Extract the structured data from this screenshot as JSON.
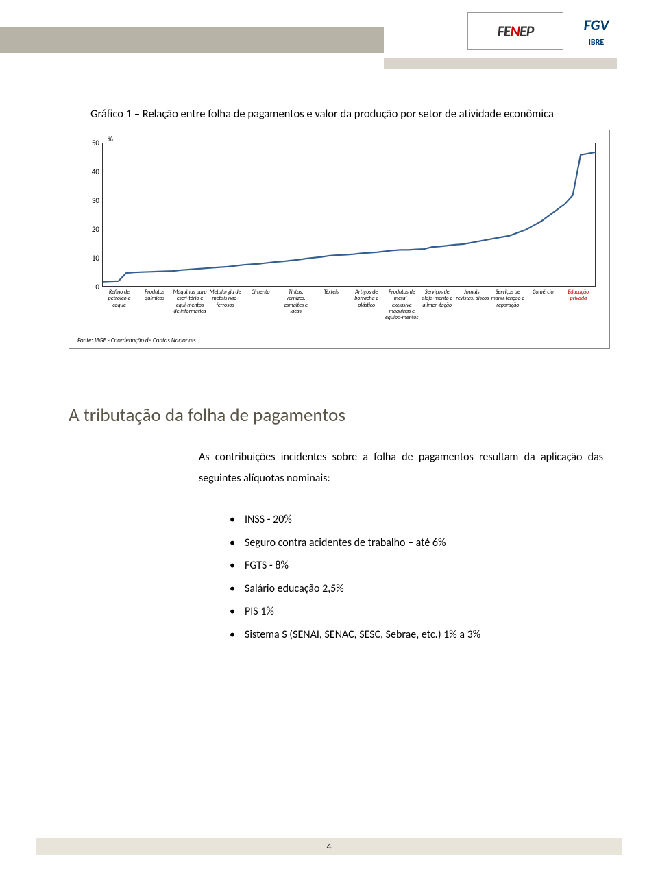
{
  "header": {
    "logo1_text_a": "FE",
    "logo1_text_b": "N",
    "logo1_text_c": "EP",
    "logo2_top": "FGV",
    "logo2_sub": "IBRE"
  },
  "chart": {
    "title": "Gráfico 1 – Relação entre folha de pagamentos e valor da produção por setor de atividade econômica",
    "type": "line",
    "pct_symbol": "%",
    "ylim": [
      0,
      50
    ],
    "ytick_step": 10,
    "yticks": [
      "0",
      "10",
      "20",
      "30",
      "40",
      "50"
    ],
    "line_color": "#365f91",
    "line_width": 2.2,
    "border_color": "#333333",
    "background_color": "#ffffff",
    "values": [
      2.0,
      2.1,
      2.2,
      5.0,
      5.2,
      5.3,
      5.4,
      5.5,
      5.6,
      5.7,
      6.0,
      6.2,
      6.4,
      6.6,
      6.8,
      7.0,
      7.2,
      7.5,
      7.8,
      8.0,
      8.2,
      8.5,
      8.8,
      9.0,
      9.3,
      9.6,
      10.0,
      10.3,
      10.6,
      11.0,
      11.2,
      11.3,
      11.5,
      11.8,
      12.0,
      12.2,
      12.5,
      12.8,
      13.0,
      13.0,
      13.2,
      13.3,
      14.0,
      14.2,
      14.5,
      14.8,
      15.0,
      15.5,
      16.0,
      16.5,
      17.0,
      17.5,
      18.0,
      19.0,
      20.0,
      21.5,
      23.0,
      25.0,
      27.0,
      29.0,
      32.0,
      46.0,
      46.5,
      47.0
    ],
    "x_labels": [
      {
        "text": "Refino de petróleo e coque",
        "highlight": false
      },
      {
        "text": "Produtos químicos",
        "highlight": false
      },
      {
        "text": "Máquinas para escri-tório e equi-mentos de informática",
        "highlight": false
      },
      {
        "text": "Metalurgia de metais não-ferrosos",
        "highlight": false
      },
      {
        "text": "Cimento",
        "highlight": false
      },
      {
        "text": "Tintas, vernizes, esmaltes e lacas",
        "highlight": false
      },
      {
        "text": "Têxteis",
        "highlight": false
      },
      {
        "text": "Artigos de borracha e plástico",
        "highlight": false
      },
      {
        "text": "Produtos de metal - exclusive máquinas e equipa-mentos",
        "highlight": false
      },
      {
        "text": "Serviços de aloja-mento e alimen-tação",
        "highlight": false
      },
      {
        "text": "Jornais, revistas, discos",
        "highlight": false
      },
      {
        "text": "Serviços de manu-tenção e reparação",
        "highlight": false
      },
      {
        "text": "Comércio",
        "highlight": false
      },
      {
        "text": "Educação privada",
        "highlight": true
      }
    ],
    "source": "Fonte: IBGE - Coordenação de Contas Nacionais"
  },
  "section": {
    "heading": "A tributação da folha de pagamentos",
    "intro": "As contribuições incidentes sobre a folha de pagamentos resultam da aplicação das seguintes alíquotas nominais:",
    "bullets": [
      "INSS - 20%",
      "Seguro contra acidentes de trabalho – até 6%",
      "FGTS - 8%",
      "Salário educação 2,5%",
      "PIS 1%",
      "Sistema S (SENAI, SENAC, SESC, Sebrae, etc.) 1% a 3%"
    ]
  },
  "footer": {
    "page_number": "4"
  },
  "colors": {
    "gray_bar": "#b8b3a7",
    "gray_bar2": "#d9d5cc",
    "heading": "#5a5447",
    "footer_bar": "#e8e4da",
    "highlight_label": "#c00000"
  }
}
